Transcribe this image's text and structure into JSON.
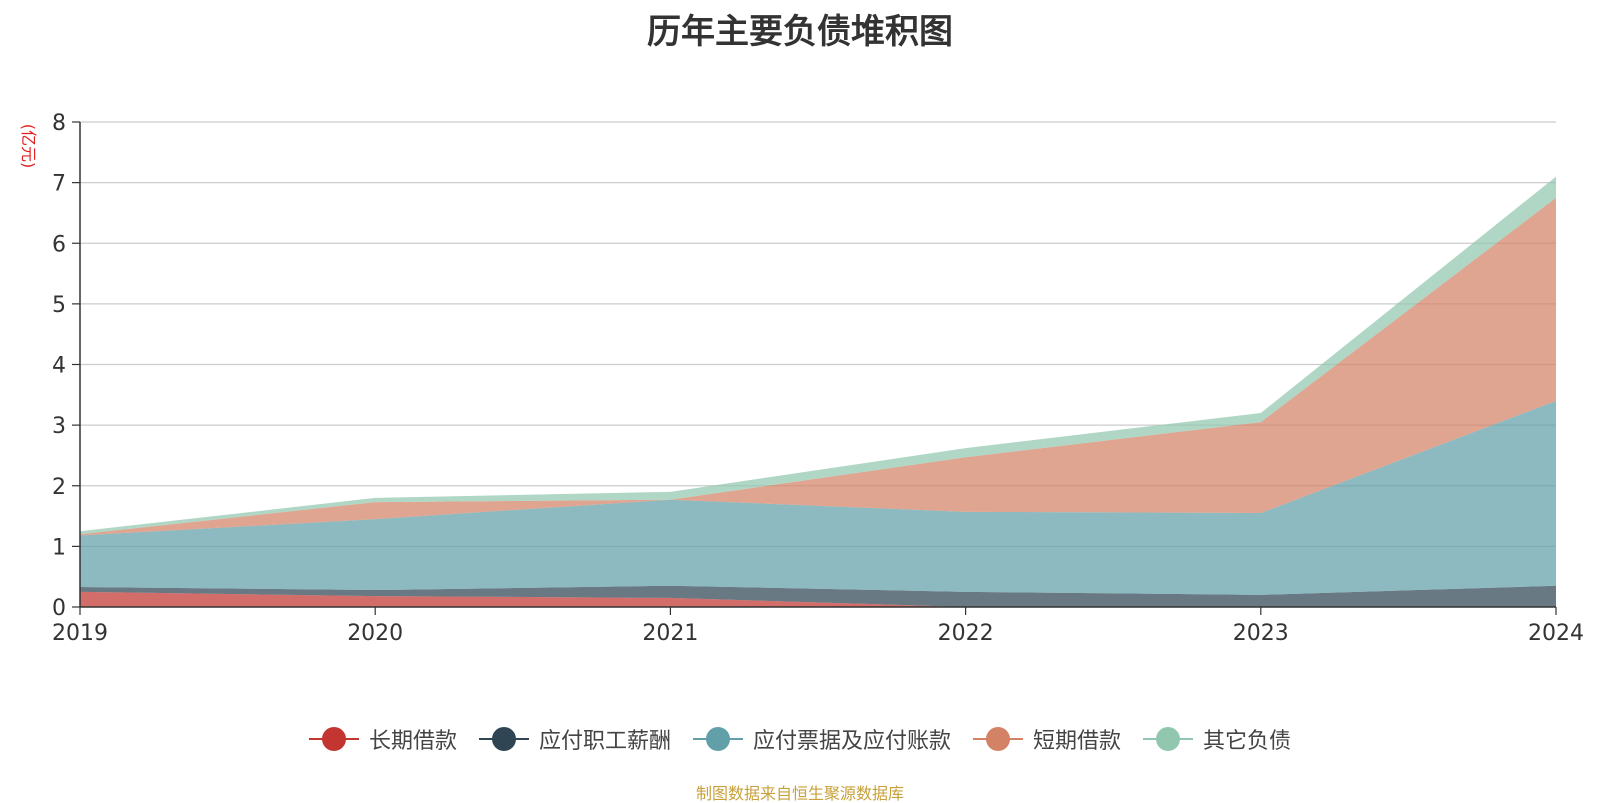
{
  "chart_data": {
    "type": "area",
    "stacked": true,
    "title": "历年主要负债堆积图",
    "ylabel": "(亿元)",
    "xlabel": "",
    "categories": [
      "2019",
      "2020",
      "2021",
      "2022",
      "2023",
      "2024"
    ],
    "ylim": [
      0,
      8
    ],
    "yticks": [
      0,
      1,
      2,
      3,
      4,
      5,
      6,
      7,
      8
    ],
    "grid": true,
    "legend_position": "bottom",
    "series": [
      {
        "name": "长期借款",
        "color": "#c23531",
        "values": [
          0.25,
          0.18,
          0.15,
          0.0,
          0.0,
          0.0
        ]
      },
      {
        "name": "应付职工薪酬",
        "color": "#2f4554",
        "values": [
          0.08,
          0.1,
          0.2,
          0.25,
          0.2,
          0.35
        ]
      },
      {
        "name": "应付票据及应付账款",
        "color": "#61a0a8",
        "values": [
          0.85,
          1.17,
          1.42,
          1.32,
          1.35,
          3.05
        ]
      },
      {
        "name": "短期借款",
        "color": "#d48265",
        "values": [
          0.02,
          0.28,
          0.0,
          0.9,
          1.5,
          3.35
        ]
      },
      {
        "name": "其它负债",
        "color": "#91c7ae",
        "values": [
          0.05,
          0.07,
          0.13,
          0.15,
          0.15,
          0.35
        ]
      }
    ]
  },
  "footer": {
    "source": "制图数据来自恒生聚源数据库"
  }
}
